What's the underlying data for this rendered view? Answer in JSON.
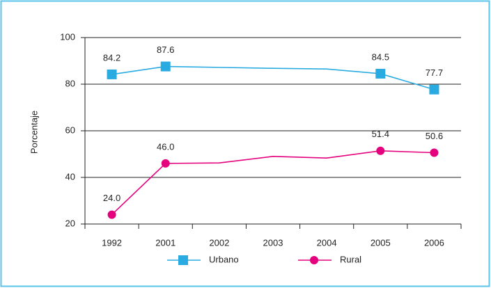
{
  "chart_data": {
    "type": "line",
    "y_label": "Porcentaje",
    "categories": [
      "1992",
      "2001",
      "2002",
      "2003",
      "2004",
      "2005",
      "2006"
    ],
    "series": [
      {
        "name": "Urbano",
        "color": "#29abe2",
        "marker": "square",
        "values": [
          84.2,
          87.6,
          87.2,
          86.8,
          86.5,
          84.5,
          77.7
        ],
        "value_labels": [
          "84.2",
          "87.6",
          null,
          null,
          null,
          "84.5",
          "77.7"
        ]
      },
      {
        "name": "Rural",
        "color": "#e5007e",
        "marker": "circle",
        "values": [
          24.0,
          46.0,
          46.2,
          49.0,
          48.3,
          51.4,
          50.6
        ],
        "value_labels": [
          "24.0",
          "46.0",
          null,
          null,
          null,
          "51.4",
          "50.6"
        ]
      }
    ],
    "ylim": [
      20,
      100
    ],
    "yticks": [
      20,
      40,
      60,
      80,
      100
    ],
    "grid": true
  }
}
